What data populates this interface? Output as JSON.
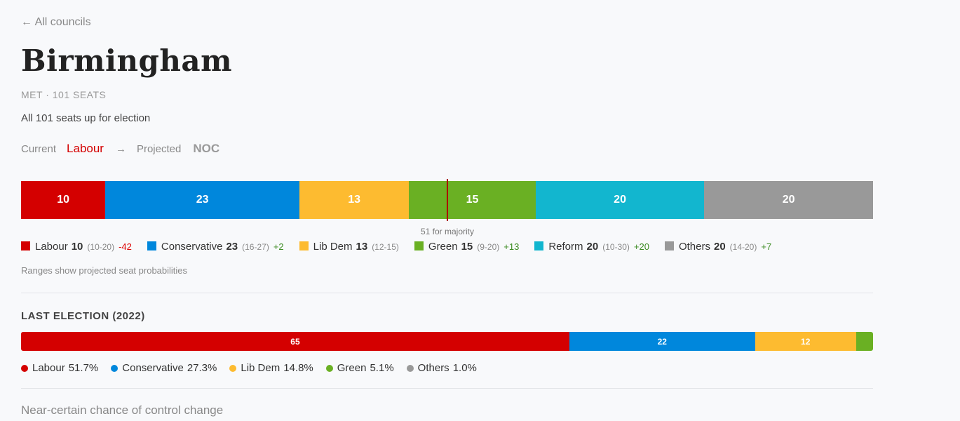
{
  "back_link": "← All councils",
  "council": {
    "name": "Birmingham",
    "meta": "MET · 101 SEATS",
    "subtitle": "All 101 seats up for election"
  },
  "control": {
    "current_label": "Current",
    "current_party": "Labour",
    "current_color": "#d40000",
    "arrow": "→",
    "projected_label": "Projected",
    "projected_party": "NOC"
  },
  "total_seats": 101,
  "majority": 51,
  "majority_label": "51 for majority",
  "projection": [
    {
      "party": "Labour",
      "seats": 10,
      "range": "(10-20)",
      "change": "-42",
      "color": "#d40000"
    },
    {
      "party": "Conservative",
      "seats": 23,
      "range": "(16-27)",
      "change": "+2",
      "color": "#0087dc"
    },
    {
      "party": "Lib Dem",
      "seats": 13,
      "range": "(12-15)",
      "change": "",
      "color": "#fdbb30"
    },
    {
      "party": "Green",
      "seats": 15,
      "range": "(9-20)",
      "change": "+13",
      "color": "#6ab023"
    },
    {
      "party": "Reform",
      "seats": 20,
      "range": "(10-30)",
      "change": "+20",
      "color": "#12b6cf"
    },
    {
      "party": "Others",
      "seats": 20,
      "range": "(14-20)",
      "change": "+7",
      "color": "#999999"
    }
  ],
  "ranges_note": "Ranges show projected seat probabilities",
  "last_election": {
    "title": "LAST ELECTION (2022)",
    "bar": [
      {
        "party": "Labour",
        "seats": 65,
        "label": "65",
        "color": "#d40000"
      },
      {
        "party": "Conservative",
        "seats": 22,
        "label": "22",
        "color": "#0087dc"
      },
      {
        "party": "Lib Dem",
        "seats": 12,
        "label": "12",
        "color": "#fdbb30"
      },
      {
        "party": "Green",
        "seats": 2,
        "label": "",
        "color": "#6ab023"
      }
    ],
    "votes": [
      {
        "party": "Labour",
        "pct": "51.7%",
        "color": "#d40000"
      },
      {
        "party": "Conservative",
        "pct": "27.3%",
        "color": "#0087dc"
      },
      {
        "party": "Lib Dem",
        "pct": "14.8%",
        "color": "#fdbb30"
      },
      {
        "party": "Green",
        "pct": "5.1%",
        "color": "#6ab023"
      },
      {
        "party": "Others",
        "pct": "1.0%",
        "color": "#999999"
      }
    ]
  },
  "footer_text": "Near-certain chance of control change"
}
